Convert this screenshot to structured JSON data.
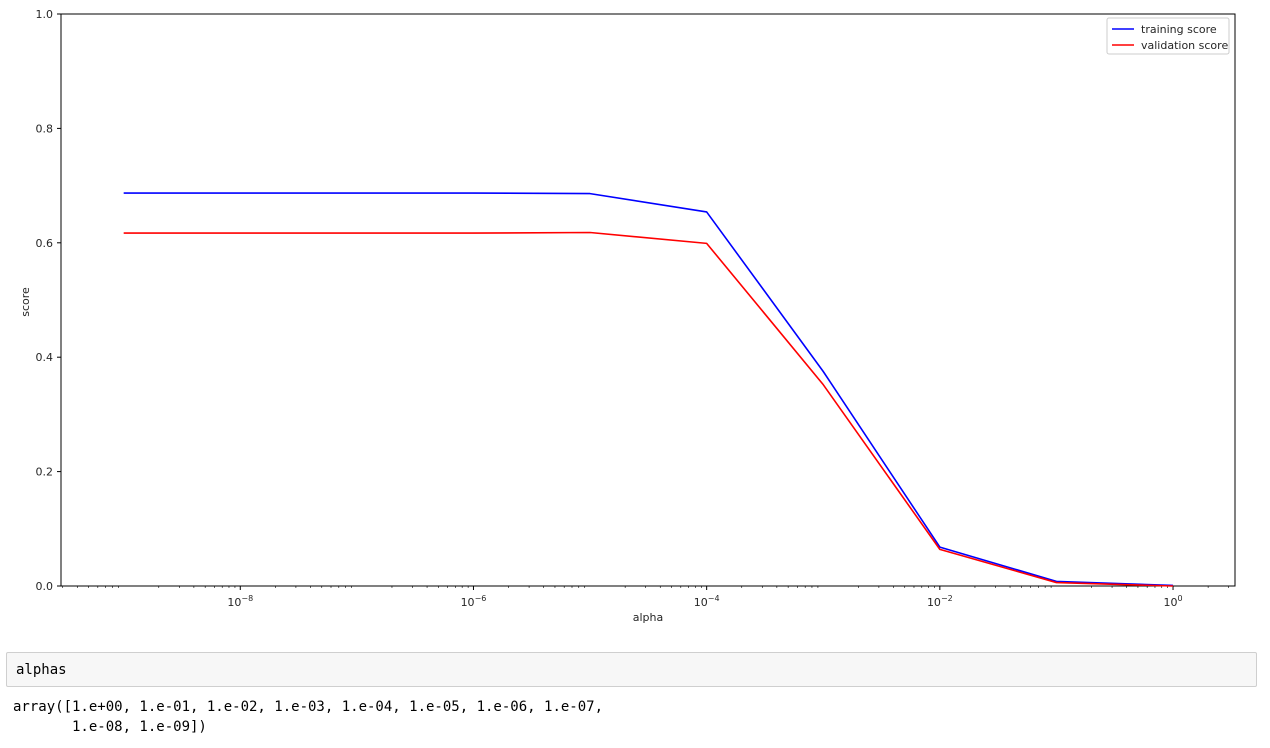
{
  "chart_data": {
    "type": "line",
    "title": "",
    "xlabel": "alpha",
    "ylabel": "score",
    "xscale": "log",
    "xlim": [
      2.9e-10,
      3.4
    ],
    "ylim": [
      0.0,
      1.0
    ],
    "grid": false,
    "legend_position": "top-right",
    "x": [
      1e-09,
      1e-08,
      1e-07,
      1e-06,
      1e-05,
      0.0001,
      0.001,
      0.01,
      0.1,
      1.0
    ],
    "x_tick_labels": [
      {
        "base": "10",
        "exp": "−8",
        "value": 1e-08
      },
      {
        "base": "10",
        "exp": "−6",
        "value": 1e-06
      },
      {
        "base": "10",
        "exp": "−4",
        "value": 0.0001
      },
      {
        "base": "10",
        "exp": "−2",
        "value": 0.01
      },
      {
        "base": "10",
        "exp": "0",
        "value": 1.0
      }
    ],
    "y_ticks": [
      0.0,
      0.2,
      0.4,
      0.6,
      0.8,
      1.0
    ],
    "y_tick_labels": [
      "0.0",
      "0.2",
      "0.4",
      "0.6",
      "0.8",
      "1.0"
    ],
    "series": [
      {
        "name": "training score",
        "color": "#0000ff",
        "values": [
          0.687,
          0.687,
          0.687,
          0.687,
          0.686,
          0.654,
          0.375,
          0.068,
          0.008,
          0.001
        ]
      },
      {
        "name": "validation score",
        "color": "#ff0000",
        "values": [
          0.617,
          0.617,
          0.617,
          0.617,
          0.618,
          0.599,
          0.352,
          0.064,
          0.006,
          0.0
        ]
      }
    ]
  },
  "notebook": {
    "input_code": "alphas",
    "output_lines": [
      "array([1.e+00, 1.e-01, 1.e-02, 1.e-03, 1.e-04, 1.e-05, 1.e-06, 1.e-07,",
      "       1.e-08, 1.e-09])"
    ]
  }
}
